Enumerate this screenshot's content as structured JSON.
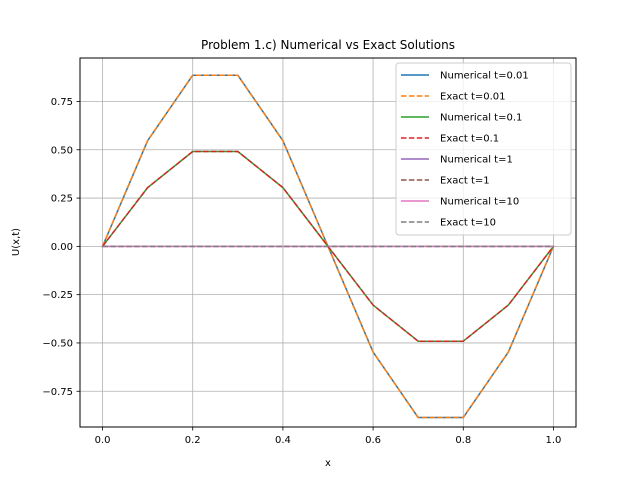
{
  "chart_data": {
    "type": "line",
    "title": "Problem 1.c) Numerical vs Exact Solutions",
    "xlabel": "x",
    "ylabel": "U(x,t)",
    "xlim": [
      -0.05,
      1.05
    ],
    "ylim": [
      -0.935,
      0.975
    ],
    "xticks": [
      0.0,
      0.2,
      0.4,
      0.6,
      0.8,
      1.0
    ],
    "xtick_labels": [
      "0.0",
      "0.2",
      "0.4",
      "0.6",
      "0.8",
      "1.0"
    ],
    "yticks": [
      -0.75,
      -0.5,
      -0.25,
      0.0,
      0.25,
      0.5,
      0.75
    ],
    "ytick_labels": [
      "−0.75",
      "−0.50",
      "−0.25",
      "0.00",
      "0.25",
      "0.50",
      "0.75"
    ],
    "grid": true,
    "legend_position": "top-right",
    "x": [
      0.0,
      0.1,
      0.2,
      0.3,
      0.4,
      0.5,
      0.6,
      0.7,
      0.8,
      0.9,
      1.0
    ],
    "series": [
      {
        "name": "Numerical t=0.01",
        "style": "solid",
        "color": "#1f77b4",
        "values": [
          0.0,
          0.547,
          0.886,
          0.886,
          0.547,
          0.0,
          -0.547,
          -0.886,
          -0.886,
          -0.547,
          0.0
        ]
      },
      {
        "name": "Exact t=0.01",
        "style": "dashed",
        "color": "#ff7f0e",
        "values": [
          0.0,
          0.547,
          0.886,
          0.886,
          0.547,
          0.0,
          -0.547,
          -0.886,
          -0.886,
          -0.547,
          0.0
        ]
      },
      {
        "name": "Numerical t=0.1",
        "style": "solid",
        "color": "#2ca02c",
        "values": [
          0.0,
          0.304,
          0.491,
          0.491,
          0.304,
          0.0,
          -0.304,
          -0.491,
          -0.491,
          -0.304,
          0.0
        ]
      },
      {
        "name": "Exact t=0.1",
        "style": "dashed",
        "color": "#d62728",
        "values": [
          0.0,
          0.304,
          0.491,
          0.491,
          0.304,
          0.0,
          -0.304,
          -0.491,
          -0.491,
          -0.304,
          0.0
        ]
      },
      {
        "name": "Numerical t=1",
        "style": "solid",
        "color": "#9467bd",
        "values": [
          0.0,
          0.0,
          0.0,
          0.0,
          0.0,
          0.0,
          0.0,
          0.0,
          0.0,
          0.0,
          0.0
        ]
      },
      {
        "name": "Exact t=1",
        "style": "dashed",
        "color": "#8c564b",
        "values": [
          0.0,
          0.0,
          0.0,
          0.0,
          0.0,
          0.0,
          0.0,
          0.0,
          0.0,
          0.0,
          0.0
        ]
      },
      {
        "name": "Numerical t=10",
        "style": "solid",
        "color": "#e377c2",
        "values": [
          0.0,
          0.0,
          0.0,
          0.0,
          0.0,
          0.0,
          0.0,
          0.0,
          0.0,
          0.0,
          0.0
        ]
      },
      {
        "name": "Exact t=10",
        "style": "dashed",
        "color": "#7f7f7f",
        "values": [
          0.0,
          0.0,
          0.0,
          0.0,
          0.0,
          0.0,
          0.0,
          0.0,
          0.0,
          0.0,
          0.0
        ]
      }
    ]
  }
}
